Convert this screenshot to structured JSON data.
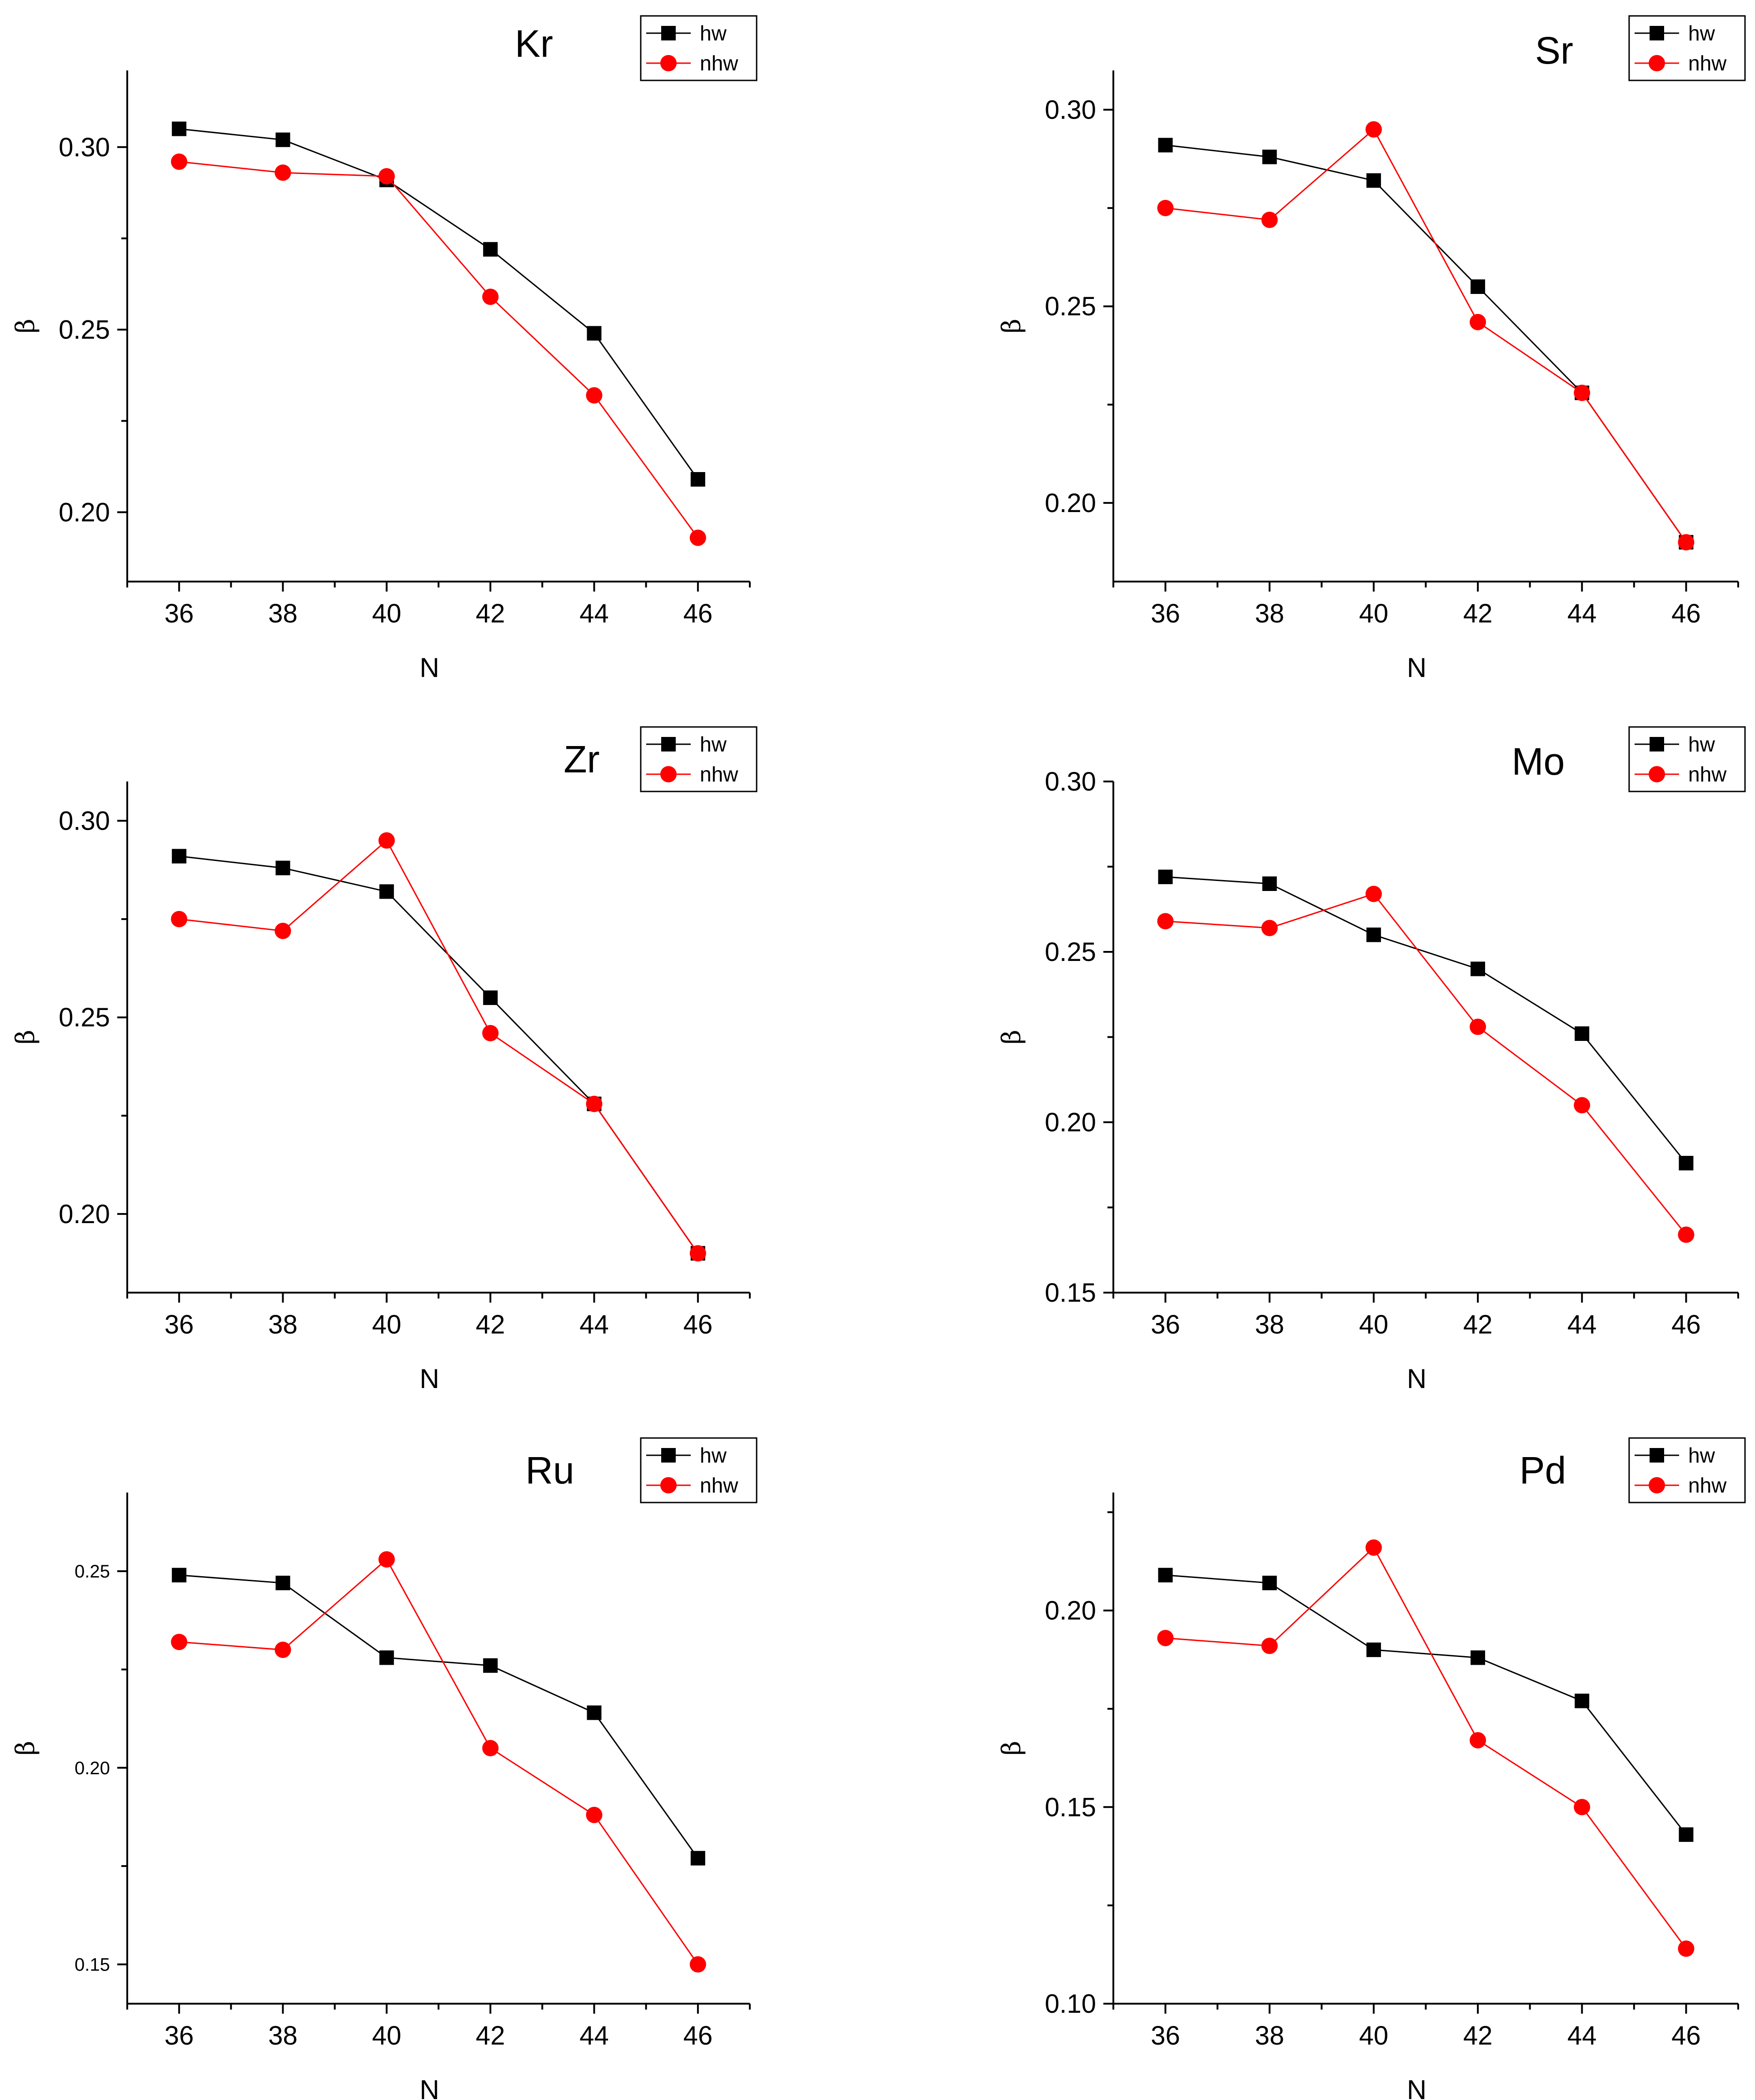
{
  "colors": {
    "hw": "#000000",
    "nhw": "#ff0000",
    "axis": "#000000",
    "background": "#ffffff"
  },
  "chart_data": [
    {
      "type": "line",
      "title": "Kr",
      "xlabel": "N",
      "ylabel": "β",
      "x": [
        36,
        38,
        40,
        42,
        44,
        46
      ],
      "xticks": [
        "36",
        "38",
        "40",
        "42",
        "44",
        "46"
      ],
      "xlim": [
        35,
        47
      ],
      "ylim": [
        0.181,
        0.321
      ],
      "yticks": [
        "0.20",
        "0.25",
        "0.30"
      ],
      "ytick_values": [
        0.2,
        0.25,
        0.3
      ],
      "legend": [
        "hw",
        "nhw"
      ],
      "legend_position": "top-right",
      "series": [
        {
          "name": "hw",
          "marker": "square",
          "color": "#000000",
          "values": [
            0.305,
            0.302,
            0.291,
            0.272,
            0.249,
            0.209
          ]
        },
        {
          "name": "nhw",
          "marker": "circle",
          "color": "#ff0000",
          "values": [
            0.296,
            0.293,
            0.292,
            0.259,
            0.232,
            0.193
          ]
        }
      ]
    },
    {
      "type": "line",
      "title": "Sr",
      "xlabel": "N",
      "ylabel": "β",
      "x": [
        36,
        38,
        40,
        42,
        44,
        46
      ],
      "xticks": [
        "36",
        "38",
        "40",
        "42",
        "44",
        "46"
      ],
      "xlim": [
        35,
        47
      ],
      "ylim": [
        0.18,
        0.31
      ],
      "yticks": [
        "0.20",
        "0.25",
        "0.30"
      ],
      "ytick_values": [
        0.2,
        0.25,
        0.3
      ],
      "legend": [
        "hw",
        "nhw"
      ],
      "legend_position": "top-right",
      "series": [
        {
          "name": "hw",
          "marker": "square",
          "color": "#000000",
          "values": [
            0.291,
            0.288,
            0.282,
            0.255,
            0.228,
            0.19
          ]
        },
        {
          "name": "nhw",
          "marker": "circle",
          "color": "#ff0000",
          "values": [
            0.275,
            0.272,
            0.295,
            0.246,
            0.228,
            0.19
          ]
        }
      ]
    },
    {
      "type": "line",
      "title": "Zr",
      "xlabel": "N",
      "ylabel": "β",
      "x": [
        36,
        38,
        40,
        42,
        44,
        46
      ],
      "xticks": [
        "36",
        "38",
        "40",
        "42",
        "44",
        "46"
      ],
      "xlim": [
        35,
        47
      ],
      "ylim": [
        0.18,
        0.31
      ],
      "yticks": [
        "0.20",
        "0.25",
        "0.30"
      ],
      "ytick_values": [
        0.2,
        0.25,
        0.3
      ],
      "legend": [
        "hw",
        "nhw"
      ],
      "legend_position": "top-right",
      "series": [
        {
          "name": "hw",
          "marker": "square",
          "color": "#000000",
          "values": [
            0.291,
            0.288,
            0.282,
            0.255,
            0.228,
            0.19
          ]
        },
        {
          "name": "nhw",
          "marker": "circle",
          "color": "#ff0000",
          "values": [
            0.275,
            0.272,
            0.295,
            0.246,
            0.228,
            0.19
          ]
        }
      ]
    },
    {
      "type": "line",
      "title": "Mo",
      "xlabel": "N",
      "ylabel": "β",
      "x": [
        36,
        38,
        40,
        42,
        44,
        46
      ],
      "xticks": [
        "36",
        "38",
        "40",
        "42",
        "44",
        "46"
      ],
      "xlim": [
        35,
        47
      ],
      "ylim": [
        0.15,
        0.3
      ],
      "yticks": [
        "0.15",
        "0.20",
        "0.25",
        "0.30"
      ],
      "ytick_values": [
        0.15,
        0.2,
        0.25,
        0.3
      ],
      "legend": [
        "hw",
        "nhw"
      ],
      "legend_position": "top-right",
      "series": [
        {
          "name": "hw",
          "marker": "square",
          "color": "#000000",
          "values": [
            0.272,
            0.27,
            0.255,
            0.245,
            0.226,
            0.188
          ]
        },
        {
          "name": "nhw",
          "marker": "circle",
          "color": "#ff0000",
          "values": [
            0.259,
            0.257,
            0.267,
            0.228,
            0.205,
            0.167
          ]
        }
      ]
    },
    {
      "type": "line",
      "title": "Ru",
      "xlabel": "N",
      "ylabel": "β",
      "x": [
        36,
        38,
        40,
        42,
        44,
        46
      ],
      "xticks": [
        "36",
        "38",
        "40",
        "42",
        "44",
        "46"
      ],
      "xlim": [
        35,
        47
      ],
      "ylim": [
        0.14,
        0.27
      ],
      "yticks": [
        "0.15",
        "0.20",
        "0.25"
      ],
      "ytick_values": [
        0.15,
        0.2,
        0.25
      ],
      "legend": [
        "hw",
        "nhw"
      ],
      "legend_position": "top-right",
      "series": [
        {
          "name": "hw",
          "marker": "square",
          "color": "#000000",
          "values": [
            0.249,
            0.247,
            0.228,
            0.226,
            0.214,
            0.177
          ]
        },
        {
          "name": "nhw",
          "marker": "circle",
          "color": "#ff0000",
          "values": [
            0.232,
            0.23,
            0.253,
            0.205,
            0.188,
            0.15
          ]
        }
      ]
    },
    {
      "type": "line",
      "title": "Pd",
      "xlabel": "N",
      "ylabel": "β",
      "x": [
        36,
        38,
        40,
        42,
        44,
        46
      ],
      "xticks": [
        "36",
        "38",
        "40",
        "42",
        "44",
        "46"
      ],
      "xlim": [
        35,
        47
      ],
      "ylim": [
        0.1,
        0.23
      ],
      "yticks": [
        "0.10",
        "0.15",
        "0.20"
      ],
      "ytick_values": [
        0.1,
        0.15,
        0.2
      ],
      "legend": [
        "hw",
        "nhw"
      ],
      "legend_position": "top-right",
      "series": [
        {
          "name": "hw",
          "marker": "square",
          "color": "#000000",
          "values": [
            0.209,
            0.207,
            0.19,
            0.188,
            0.177,
            0.143
          ]
        },
        {
          "name": "nhw",
          "marker": "circle",
          "color": "#ff0000",
          "values": [
            0.193,
            0.191,
            0.216,
            0.167,
            0.15,
            0.114
          ]
        }
      ]
    }
  ]
}
